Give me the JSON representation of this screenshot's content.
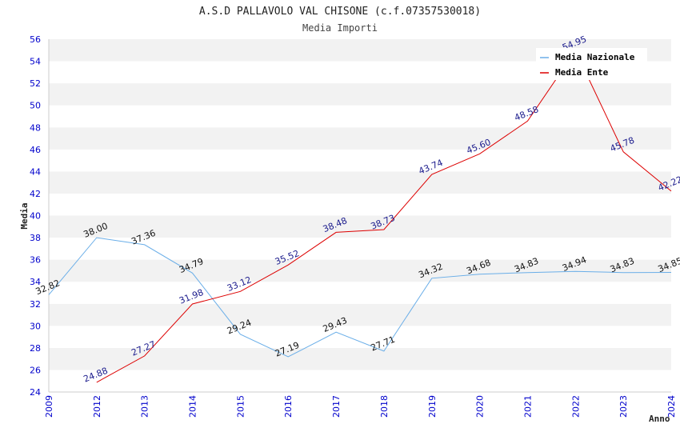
{
  "chart_data": {
    "type": "line",
    "title": "A.S.D PALLAVOLO VAL CHISONE (c.f.07357530018)",
    "subtitle": "Media Importi",
    "xlabel": "Anno",
    "ylabel": "Media",
    "ylim": [
      24,
      56
    ],
    "yticks": [
      "24",
      "26",
      "28",
      "30",
      "32",
      "34",
      "36",
      "38",
      "40",
      "42",
      "44",
      "46",
      "48",
      "50",
      "52",
      "54",
      "56"
    ],
    "categories": [
      "2009",
      "2012",
      "2013",
      "2014",
      "2015",
      "2016",
      "2017",
      "2018",
      "2019",
      "2020",
      "2021",
      "2022",
      "2023",
      "2024"
    ],
    "legend_position": "top-right",
    "series": [
      {
        "name": "Media Nazionale",
        "color": "#6aaee8",
        "values": [
          32.82,
          38.0,
          37.36,
          34.79,
          29.24,
          27.19,
          29.43,
          27.71,
          34.32,
          34.68,
          34.83,
          34.94,
          34.83,
          34.85
        ],
        "labels": [
          "32.82",
          "38.00",
          "37.36",
          "34.79",
          "29.24",
          "27.19",
          "29.43",
          "27.71",
          "34.32",
          "34.68",
          "34.83",
          "34.94",
          "34.83",
          "34.85"
        ]
      },
      {
        "name": "Media Ente",
        "color": "#dd0000",
        "values": [
          null,
          24.88,
          27.27,
          31.98,
          33.12,
          35.52,
          38.48,
          38.73,
          43.74,
          45.6,
          48.58,
          54.95,
          45.78,
          42.22
        ],
        "labels": [
          null,
          "24.88",
          "27.27",
          "31.98",
          "33.12",
          "35.52",
          "38.48",
          "38.73",
          "43.74",
          "45.60",
          "48.58",
          "54.95",
          "45.78",
          "42.22"
        ]
      }
    ]
  }
}
